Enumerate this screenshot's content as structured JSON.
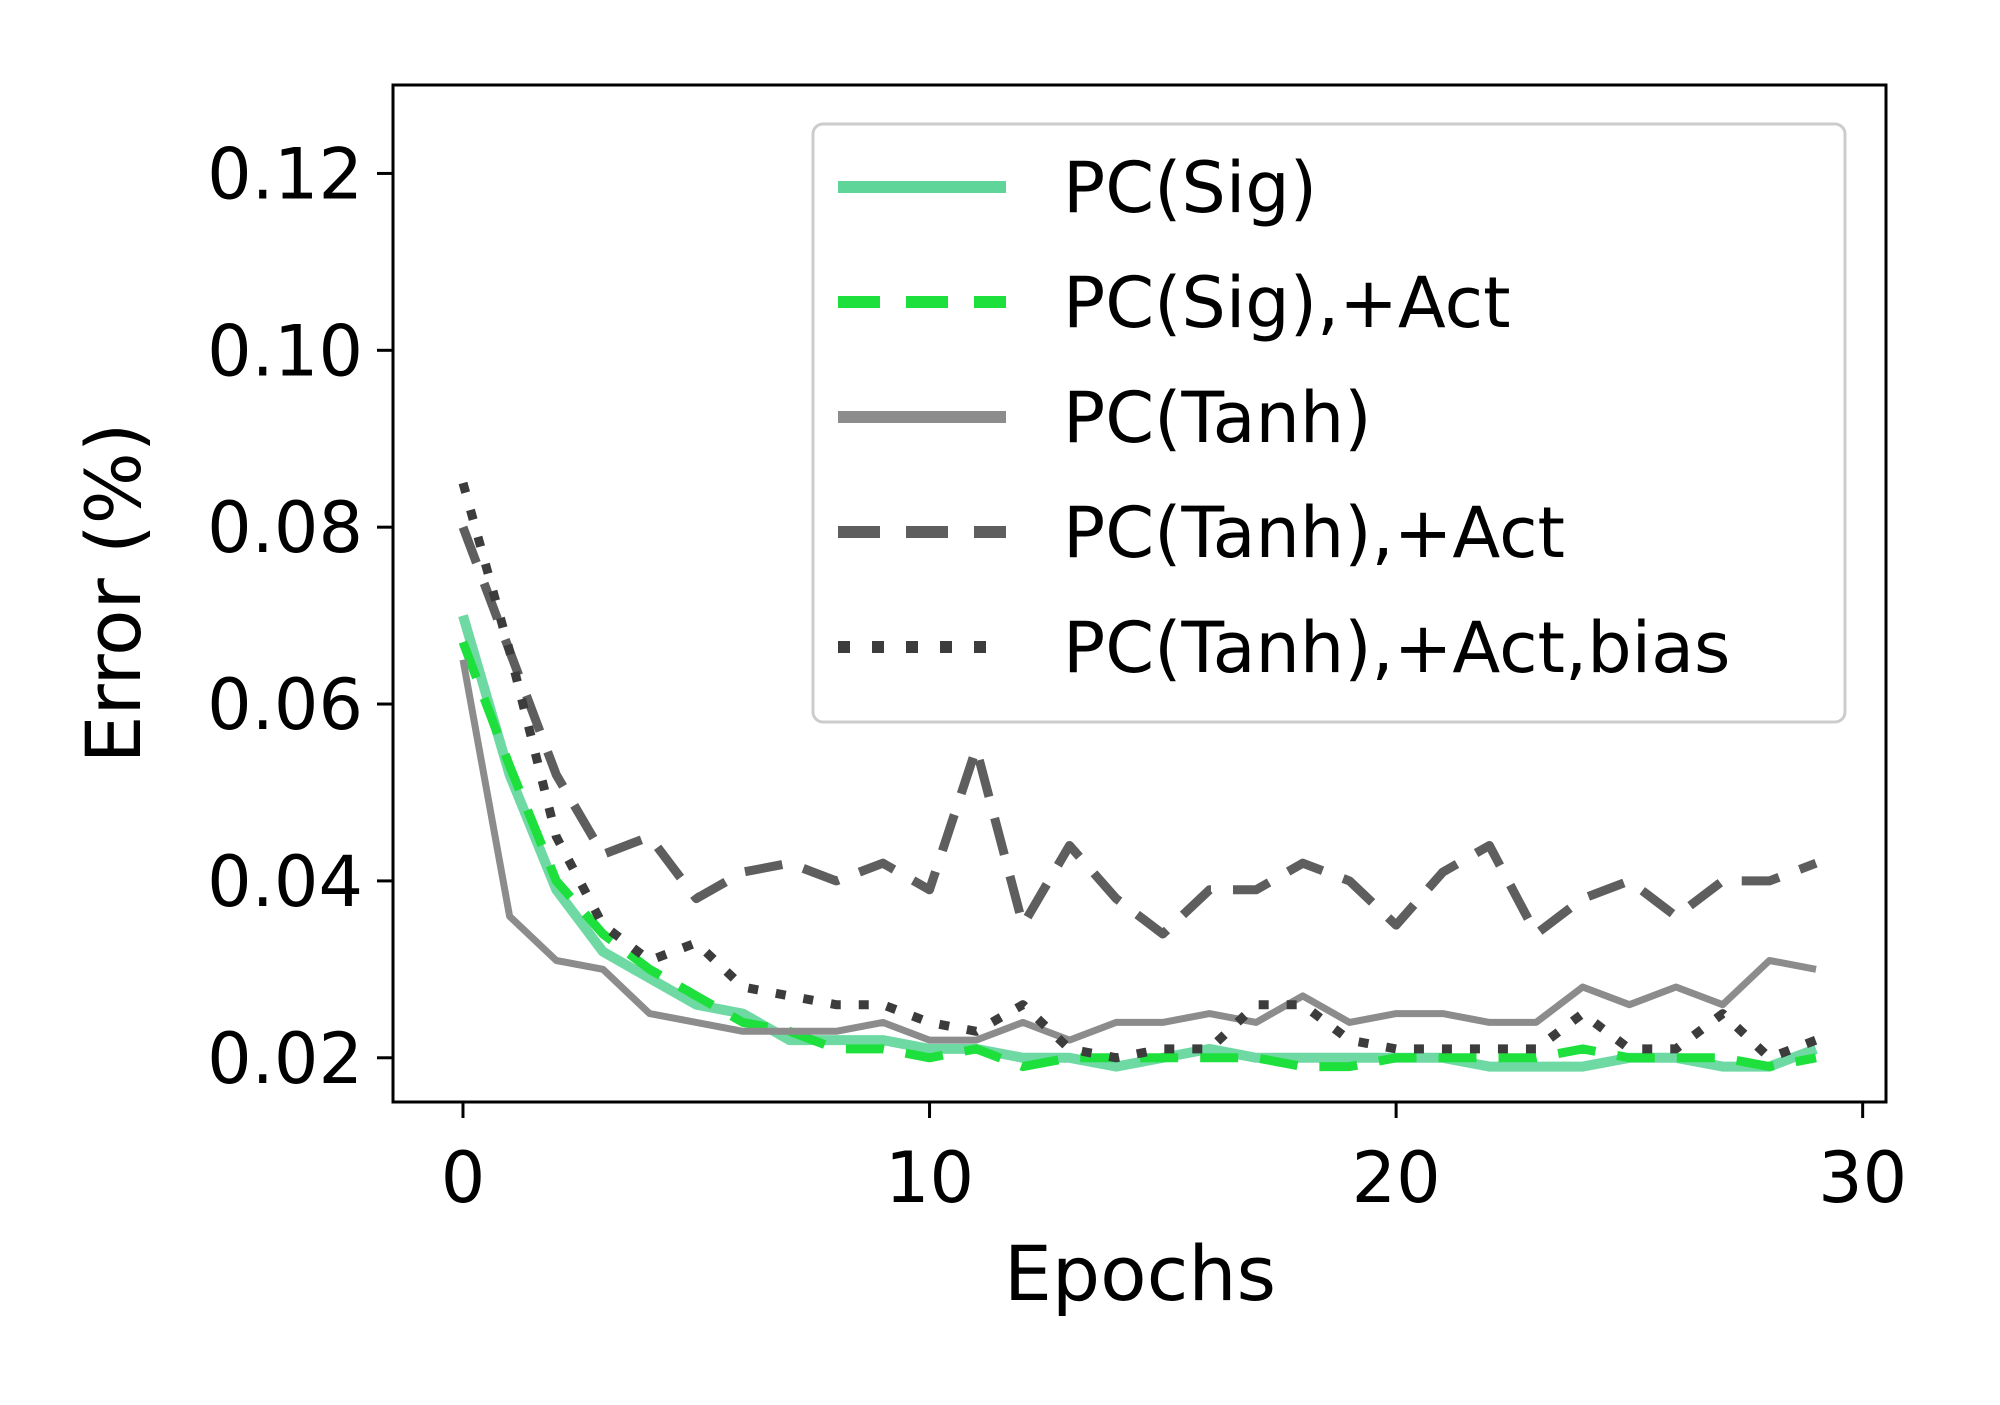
{
  "chart_data": {
    "type": "line",
    "title": "",
    "xlabel": "Epochs",
    "ylabel": "Error (%)",
    "xlim": [
      -1.5,
      30.5
    ],
    "ylim": [
      0.015,
      0.13
    ],
    "xticks": [
      0,
      10,
      20,
      30
    ],
    "xtick_labels": [
      "0",
      "10",
      "20",
      "30"
    ],
    "yticks": [
      0.02,
      0.04,
      0.06,
      0.08,
      0.1,
      0.12
    ],
    "ytick_labels": [
      "0.02",
      "0.04",
      "0.06",
      "0.08",
      "0.10",
      "0.12"
    ],
    "grid": false,
    "legend_position": "top-right",
    "x": [
      0,
      1,
      2,
      3,
      4,
      5,
      6,
      7,
      8,
      9,
      10,
      11,
      12,
      13,
      14,
      15,
      16,
      17,
      18,
      19,
      20,
      21,
      22,
      23,
      24,
      25,
      26,
      27,
      28,
      29
    ],
    "series": [
      {
        "name": "PC(Sig)",
        "color": "#5fd59a",
        "dash": "solid",
        "values": [
          0.07,
          0.052,
          0.039,
          0.032,
          0.029,
          0.026,
          0.025,
          0.022,
          0.022,
          0.022,
          0.021,
          0.021,
          0.02,
          0.02,
          0.019,
          0.02,
          0.021,
          0.02,
          0.02,
          0.02,
          0.02,
          0.02,
          0.019,
          0.019,
          0.019,
          0.02,
          0.02,
          0.019,
          0.019,
          0.021
        ]
      },
      {
        "name": "PC(Sig),+Act",
        "color": "#1ee03c",
        "dash": "dashed",
        "values": [
          0.067,
          0.053,
          0.04,
          0.034,
          0.03,
          0.027,
          0.024,
          0.023,
          0.021,
          0.021,
          0.02,
          0.021,
          0.019,
          0.02,
          0.02,
          0.02,
          0.02,
          0.02,
          0.019,
          0.019,
          0.02,
          0.02,
          0.02,
          0.02,
          0.021,
          0.02,
          0.02,
          0.02,
          0.019,
          0.02
        ]
      },
      {
        "name": "PC(Tanh)",
        "color": "#8c8c8c",
        "dash": "solid",
        "values": [
          0.065,
          0.036,
          0.031,
          0.03,
          0.025,
          0.024,
          0.023,
          0.023,
          0.023,
          0.024,
          0.022,
          0.022,
          0.024,
          0.022,
          0.024,
          0.024,
          0.025,
          0.024,
          0.027,
          0.024,
          0.025,
          0.025,
          0.024,
          0.024,
          0.028,
          0.026,
          0.028,
          0.026,
          0.031,
          0.03
        ]
      },
      {
        "name": "PC(Tanh),+Act",
        "color": "#5e5e5e",
        "dash": "dashed",
        "values": [
          0.08,
          0.066,
          0.052,
          0.043,
          0.045,
          0.038,
          0.041,
          0.042,
          0.04,
          0.042,
          0.039,
          0.055,
          0.035,
          0.044,
          0.038,
          0.034,
          0.039,
          0.039,
          0.042,
          0.04,
          0.035,
          0.041,
          0.044,
          0.034,
          0.038,
          0.04,
          0.036,
          0.04,
          0.04,
          0.042
        ]
      },
      {
        "name": "PC(Tanh),+Act,bias",
        "color": "#3c3c3c",
        "dash": "dotted",
        "values": [
          0.085,
          0.066,
          0.045,
          0.035,
          0.031,
          0.033,
          0.028,
          0.027,
          0.026,
          0.026,
          0.024,
          0.023,
          0.026,
          0.021,
          0.02,
          0.021,
          0.021,
          0.026,
          0.026,
          0.022,
          0.021,
          0.021,
          0.021,
          0.021,
          0.025,
          0.021,
          0.021,
          0.025,
          0.02,
          0.022
        ]
      }
    ]
  }
}
